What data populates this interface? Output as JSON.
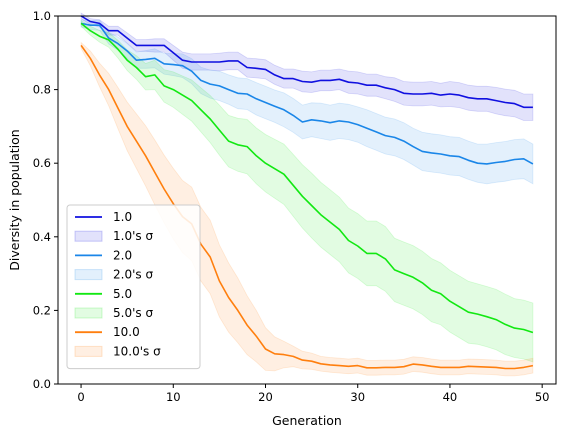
{
  "chart_data": {
    "type": "line",
    "xlabel": "Generation",
    "ylabel": "Diversity in population",
    "xlim": [
      -2.5,
      51.5
    ],
    "ylim": [
      0.0,
      1.0
    ],
    "xticks": [
      0,
      10,
      20,
      30,
      40,
      50
    ],
    "yticks": [
      0.0,
      0.2,
      0.4,
      0.6,
      0.8,
      1.0
    ],
    "x": [
      0,
      1,
      2,
      3,
      4,
      5,
      6,
      7,
      8,
      9,
      10,
      11,
      12,
      13,
      14,
      15,
      16,
      17,
      18,
      19,
      20,
      21,
      22,
      23,
      24,
      25,
      26,
      27,
      28,
      29,
      30,
      31,
      32,
      33,
      34,
      35,
      36,
      37,
      38,
      39,
      40,
      41,
      42,
      43,
      44,
      45,
      46,
      47,
      48,
      49
    ],
    "legend_position": "lower-left",
    "series": [
      {
        "name": "1.0",
        "band_label": "1.0's σ",
        "color": "#1010e0",
        "values": [
          1.0,
          0.985,
          0.98,
          0.96,
          0.96,
          0.94,
          0.92,
          0.92,
          0.92,
          0.92,
          0.9,
          0.88,
          0.875,
          0.875,
          0.875,
          0.875,
          0.878,
          0.878,
          0.86,
          0.858,
          0.855,
          0.84,
          0.83,
          0.83,
          0.822,
          0.82,
          0.825,
          0.825,
          0.828,
          0.82,
          0.818,
          0.812,
          0.812,
          0.805,
          0.8,
          0.79,
          0.788,
          0.788,
          0.79,
          0.785,
          0.788,
          0.785,
          0.778,
          0.775,
          0.775,
          0.77,
          0.765,
          0.762,
          0.752,
          0.752
        ],
        "band": [
          0.008,
          0.008,
          0.01,
          0.012,
          0.012,
          0.014,
          0.016,
          0.016,
          0.018,
          0.018,
          0.02,
          0.022,
          0.022,
          0.022,
          0.022,
          0.024,
          0.024,
          0.024,
          0.026,
          0.026,
          0.026,
          0.026,
          0.026,
          0.026,
          0.028,
          0.028,
          0.028,
          0.028,
          0.028,
          0.03,
          0.03,
          0.03,
          0.03,
          0.03,
          0.032,
          0.032,
          0.032,
          0.032,
          0.032,
          0.032,
          0.034,
          0.034,
          0.034,
          0.034,
          0.034,
          0.036,
          0.036,
          0.036,
          0.036,
          0.036
        ]
      },
      {
        "name": "2.0",
        "band_label": "2.0's σ",
        "color": "#1a86e8",
        "values": [
          0.98,
          0.975,
          0.975,
          0.94,
          0.925,
          0.905,
          0.88,
          0.882,
          0.885,
          0.87,
          0.868,
          0.865,
          0.85,
          0.825,
          0.815,
          0.81,
          0.8,
          0.79,
          0.788,
          0.775,
          0.765,
          0.755,
          0.745,
          0.73,
          0.712,
          0.718,
          0.715,
          0.71,
          0.715,
          0.712,
          0.705,
          0.695,
          0.685,
          0.675,
          0.67,
          0.66,
          0.645,
          0.632,
          0.628,
          0.625,
          0.62,
          0.618,
          0.608,
          0.6,
          0.598,
          0.602,
          0.605,
          0.61,
          0.612,
          0.598
        ],
        "band": [
          0.01,
          0.012,
          0.014,
          0.016,
          0.018,
          0.02,
          0.022,
          0.024,
          0.026,
          0.028,
          0.03,
          0.032,
          0.034,
          0.036,
          0.038,
          0.04,
          0.04,
          0.042,
          0.042,
          0.044,
          0.044,
          0.044,
          0.046,
          0.046,
          0.046,
          0.046,
          0.048,
          0.048,
          0.048,
          0.048,
          0.048,
          0.05,
          0.05,
          0.05,
          0.05,
          0.05,
          0.05,
          0.052,
          0.052,
          0.052,
          0.052,
          0.052,
          0.052,
          0.052,
          0.054,
          0.054,
          0.054,
          0.054,
          0.054,
          0.054
        ]
      },
      {
        "name": "5.0",
        "band_label": "5.0's σ",
        "color": "#12e812",
        "values": [
          0.98,
          0.96,
          0.945,
          0.935,
          0.91,
          0.88,
          0.86,
          0.835,
          0.84,
          0.81,
          0.8,
          0.785,
          0.77,
          0.745,
          0.72,
          0.69,
          0.66,
          0.65,
          0.645,
          0.62,
          0.6,
          0.585,
          0.57,
          0.54,
          0.51,
          0.485,
          0.46,
          0.44,
          0.42,
          0.39,
          0.375,
          0.355,
          0.355,
          0.34,
          0.31,
          0.3,
          0.29,
          0.275,
          0.255,
          0.245,
          0.225,
          0.21,
          0.195,
          0.19,
          0.183,
          0.175,
          0.162,
          0.152,
          0.148,
          0.14
        ],
        "band": [
          0.008,
          0.012,
          0.016,
          0.02,
          0.024,
          0.028,
          0.032,
          0.036,
          0.04,
          0.044,
          0.048,
          0.052,
          0.056,
          0.06,
          0.064,
          0.068,
          0.07,
          0.072,
          0.074,
          0.076,
          0.078,
          0.08,
          0.082,
          0.084,
          0.086,
          0.088,
          0.088,
          0.088,
          0.088,
          0.088,
          0.088,
          0.088,
          0.088,
          0.088,
          0.086,
          0.086,
          0.086,
          0.086,
          0.086,
          0.084,
          0.084,
          0.084,
          0.084,
          0.082,
          0.082,
          0.082,
          0.082,
          0.08,
          0.08,
          0.08
        ]
      },
      {
        "name": "10.0",
        "band_label": "10.0's σ",
        "color": "#ff7f0e",
        "values": [
          0.92,
          0.885,
          0.84,
          0.8,
          0.75,
          0.7,
          0.66,
          0.62,
          0.575,
          0.53,
          0.49,
          0.455,
          0.435,
          0.38,
          0.345,
          0.28,
          0.235,
          0.2,
          0.16,
          0.13,
          0.095,
          0.082,
          0.08,
          0.075,
          0.065,
          0.062,
          0.055,
          0.052,
          0.05,
          0.048,
          0.05,
          0.044,
          0.044,
          0.045,
          0.045,
          0.047,
          0.054,
          0.052,
          0.048,
          0.045,
          0.045,
          0.045,
          0.048,
          0.047,
          0.046,
          0.045,
          0.042,
          0.042,
          0.045,
          0.05
        ],
        "band": [
          0.008,
          0.02,
          0.032,
          0.044,
          0.056,
          0.066,
          0.074,
          0.082,
          0.088,
          0.092,
          0.096,
          0.098,
          0.1,
          0.1,
          0.1,
          0.098,
          0.094,
          0.088,
          0.08,
          0.07,
          0.058,
          0.046,
          0.036,
          0.028,
          0.024,
          0.022,
          0.02,
          0.02,
          0.02,
          0.02,
          0.02,
          0.02,
          0.02,
          0.02,
          0.02,
          0.02,
          0.02,
          0.02,
          0.02,
          0.02,
          0.02,
          0.02,
          0.02,
          0.02,
          0.02,
          0.02,
          0.02,
          0.02,
          0.02,
          0.02
        ]
      }
    ]
  }
}
